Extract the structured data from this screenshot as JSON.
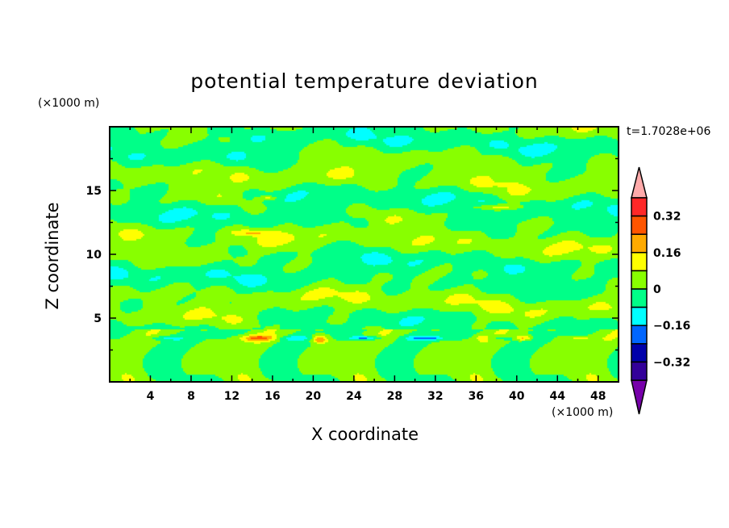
{
  "chart_data": {
    "type": "heatmap",
    "subtype": "filled-contour",
    "title": "potential temperature deviation",
    "xlabel": "X coordinate",
    "ylabel": "Z coordinate",
    "x_unit": "(×1000 m)",
    "y_unit": "(×1000 m)",
    "annotation": "t=1.7028e+06",
    "xlim": [
      0,
      50
    ],
    "ylim": [
      0,
      20
    ],
    "x_ticks": [
      4,
      8,
      12,
      16,
      20,
      24,
      28,
      32,
      36,
      40,
      44,
      48
    ],
    "y_ticks": [
      5,
      10,
      15
    ],
    "colorbar": {
      "levels": [
        -0.4,
        -0.32,
        -0.24,
        -0.16,
        -0.08,
        0,
        0.08,
        0.16,
        0.24,
        0.32,
        0.4
      ],
      "tick_labels": [
        "0.32",
        "0.16",
        "0",
        "−0.16",
        "−0.32"
      ],
      "tick_values": [
        0.32,
        0.16,
        0,
        -0.16,
        -0.32
      ],
      "colors_high_to_low": [
        "#ff2828",
        "#ff5500",
        "#ffaa00",
        "#ffff00",
        "#88ff00",
        "#00ff88",
        "#00ffff",
        "#0066ff",
        "#0000aa",
        "#330099"
      ],
      "over_color": "#ffaaaa",
      "under_color": "#7700aa",
      "extend": "both"
    },
    "dominant_values": "field mostly between -0.08 and 0.08; weak maxima (0.08–0.32) near z≈3.5 at x≈14,20,40 and z≈11.8,13.8,14.5; minima to about -0.24 near z≈3.5 at x≈25,31"
  }
}
